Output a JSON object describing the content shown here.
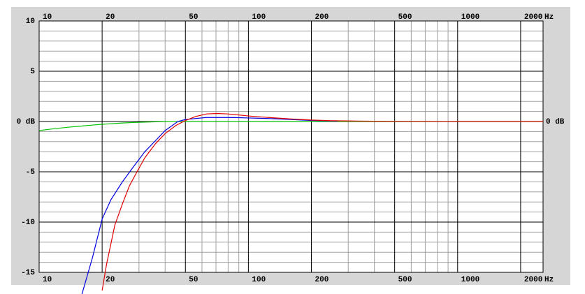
{
  "chart_data": {
    "type": "line",
    "x_unit": "Hz",
    "xscale": "log",
    "xlim": [
      10,
      2560
    ],
    "ylim": [
      -15,
      10
    ],
    "xticks": [
      10,
      20,
      50,
      100,
      200,
      500,
      1000,
      2000
    ],
    "xminorticks": [
      30,
      40,
      60,
      70,
      80,
      90,
      300,
      400,
      600,
      700,
      800,
      900
    ],
    "yticks": [
      10,
      5,
      {
        "value": 0,
        "label": "0 dB"
      },
      -5,
      -10,
      -15
    ],
    "yminorticks": [
      9,
      8,
      7,
      6,
      4,
      3,
      2,
      1,
      -1,
      -2,
      -3,
      -4,
      -6,
      -7,
      -8,
      -9,
      -11,
      -12,
      -13,
      -14
    ],
    "right_ytick": {
      "value": 0,
      "label": "0 dB"
    },
    "grid": true,
    "series": [
      {
        "color": "#00c000",
        "x": [
          10,
          12,
          14,
          16,
          18,
          20,
          22,
          25,
          28,
          32,
          36,
          40,
          50,
          100,
          1000,
          2560
        ],
        "values": [
          -0.9,
          -0.7,
          -0.55,
          -0.45,
          -0.35,
          -0.28,
          -0.22,
          -0.15,
          -0.1,
          -0.06,
          -0.03,
          -0.01,
          0,
          0,
          0,
          0
        ]
      },
      {
        "color": "#0000e0",
        "x": [
          16,
          18,
          20,
          22,
          25,
          28,
          32,
          36,
          40,
          46,
          50,
          56,
          63,
          71,
          80,
          90,
          100,
          125,
          160,
          200,
          250,
          267
        ],
        "values": [
          -17.2,
          -13.5,
          -9.7,
          -7.8,
          -6.0,
          -4.6,
          -3.0,
          -1.9,
          -0.9,
          0,
          0.2,
          0.3,
          0.4,
          0.4,
          0.4,
          0.38,
          0.35,
          0.3,
          0.2,
          0.1,
          0.05,
          0.03
        ]
      },
      {
        "color": "#e00000",
        "x": [
          20,
          21,
          23,
          25,
          27,
          29,
          32,
          36,
          40,
          45,
          50,
          56,
          63,
          71,
          80,
          90,
          100,
          125,
          160,
          200,
          250,
          315,
          400,
          500,
          1000,
          2560
        ],
        "values": [
          -16.8,
          -14.2,
          -10.3,
          -8.2,
          -6.4,
          -5.2,
          -3.6,
          -2.2,
          -1.2,
          -0.4,
          0.1,
          0.5,
          0.75,
          0.8,
          0.75,
          0.65,
          0.55,
          0.4,
          0.25,
          0.15,
          0.08,
          0.05,
          0.03,
          0.02,
          0,
          0
        ]
      }
    ]
  }
}
